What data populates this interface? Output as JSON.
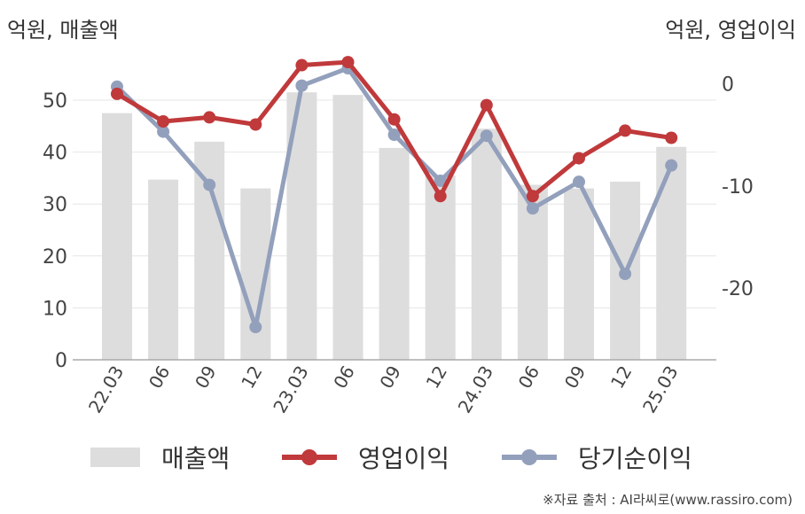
{
  "unit_left": "억원, 매출액",
  "unit_right": "억원, 영업이익",
  "source": "※자료 출처 : AI라씨로(www.rassiro.com)",
  "legend": {
    "sales": "매출액",
    "op": "영업이익",
    "net": "당기순이익"
  },
  "colors": {
    "sales": "#dddddd",
    "op": "#c0393b",
    "net": "#93a0bc",
    "grid": "#e6e6e6",
    "axis": "#aaaaaa"
  },
  "chart_data": {
    "type": "bar",
    "categories": [
      "22.03",
      "06",
      "09",
      "12",
      "23.03",
      "06",
      "09",
      "12",
      "24.03",
      "06",
      "09",
      "12",
      "25.03"
    ],
    "y_left": {
      "ticks": [
        0,
        10,
        20,
        30,
        40,
        50
      ],
      "range": [
        0,
        58.7
      ]
    },
    "y_right": {
      "ticks": [
        0,
        -10,
        -20
      ],
      "range": [
        -27,
        2.8
      ]
    },
    "series": [
      {
        "name": "매출액",
        "kind": "bar",
        "axis": "left",
        "values": [
          47.5,
          34.7,
          42.0,
          33.0,
          51.5,
          51.0,
          40.8,
          35.5,
          44.5,
          33.7,
          33.0,
          34.3,
          41.0
        ]
      },
      {
        "name": "영업이익",
        "kind": "line",
        "axis": "right",
        "values": [
          -1.0,
          -3.7,
          -3.3,
          -4.0,
          1.8,
          2.1,
          -3.5,
          -11.0,
          -2.1,
          -11.0,
          -7.3,
          -4.6,
          -5.3
        ]
      },
      {
        "name": "당기순이익",
        "kind": "line",
        "axis": "right",
        "values": [
          -0.3,
          -4.7,
          -9.9,
          -23.8,
          -0.2,
          1.5,
          -5.0,
          -9.5,
          -5.1,
          -12.2,
          -9.6,
          -18.6,
          -8.0
        ]
      }
    ]
  }
}
